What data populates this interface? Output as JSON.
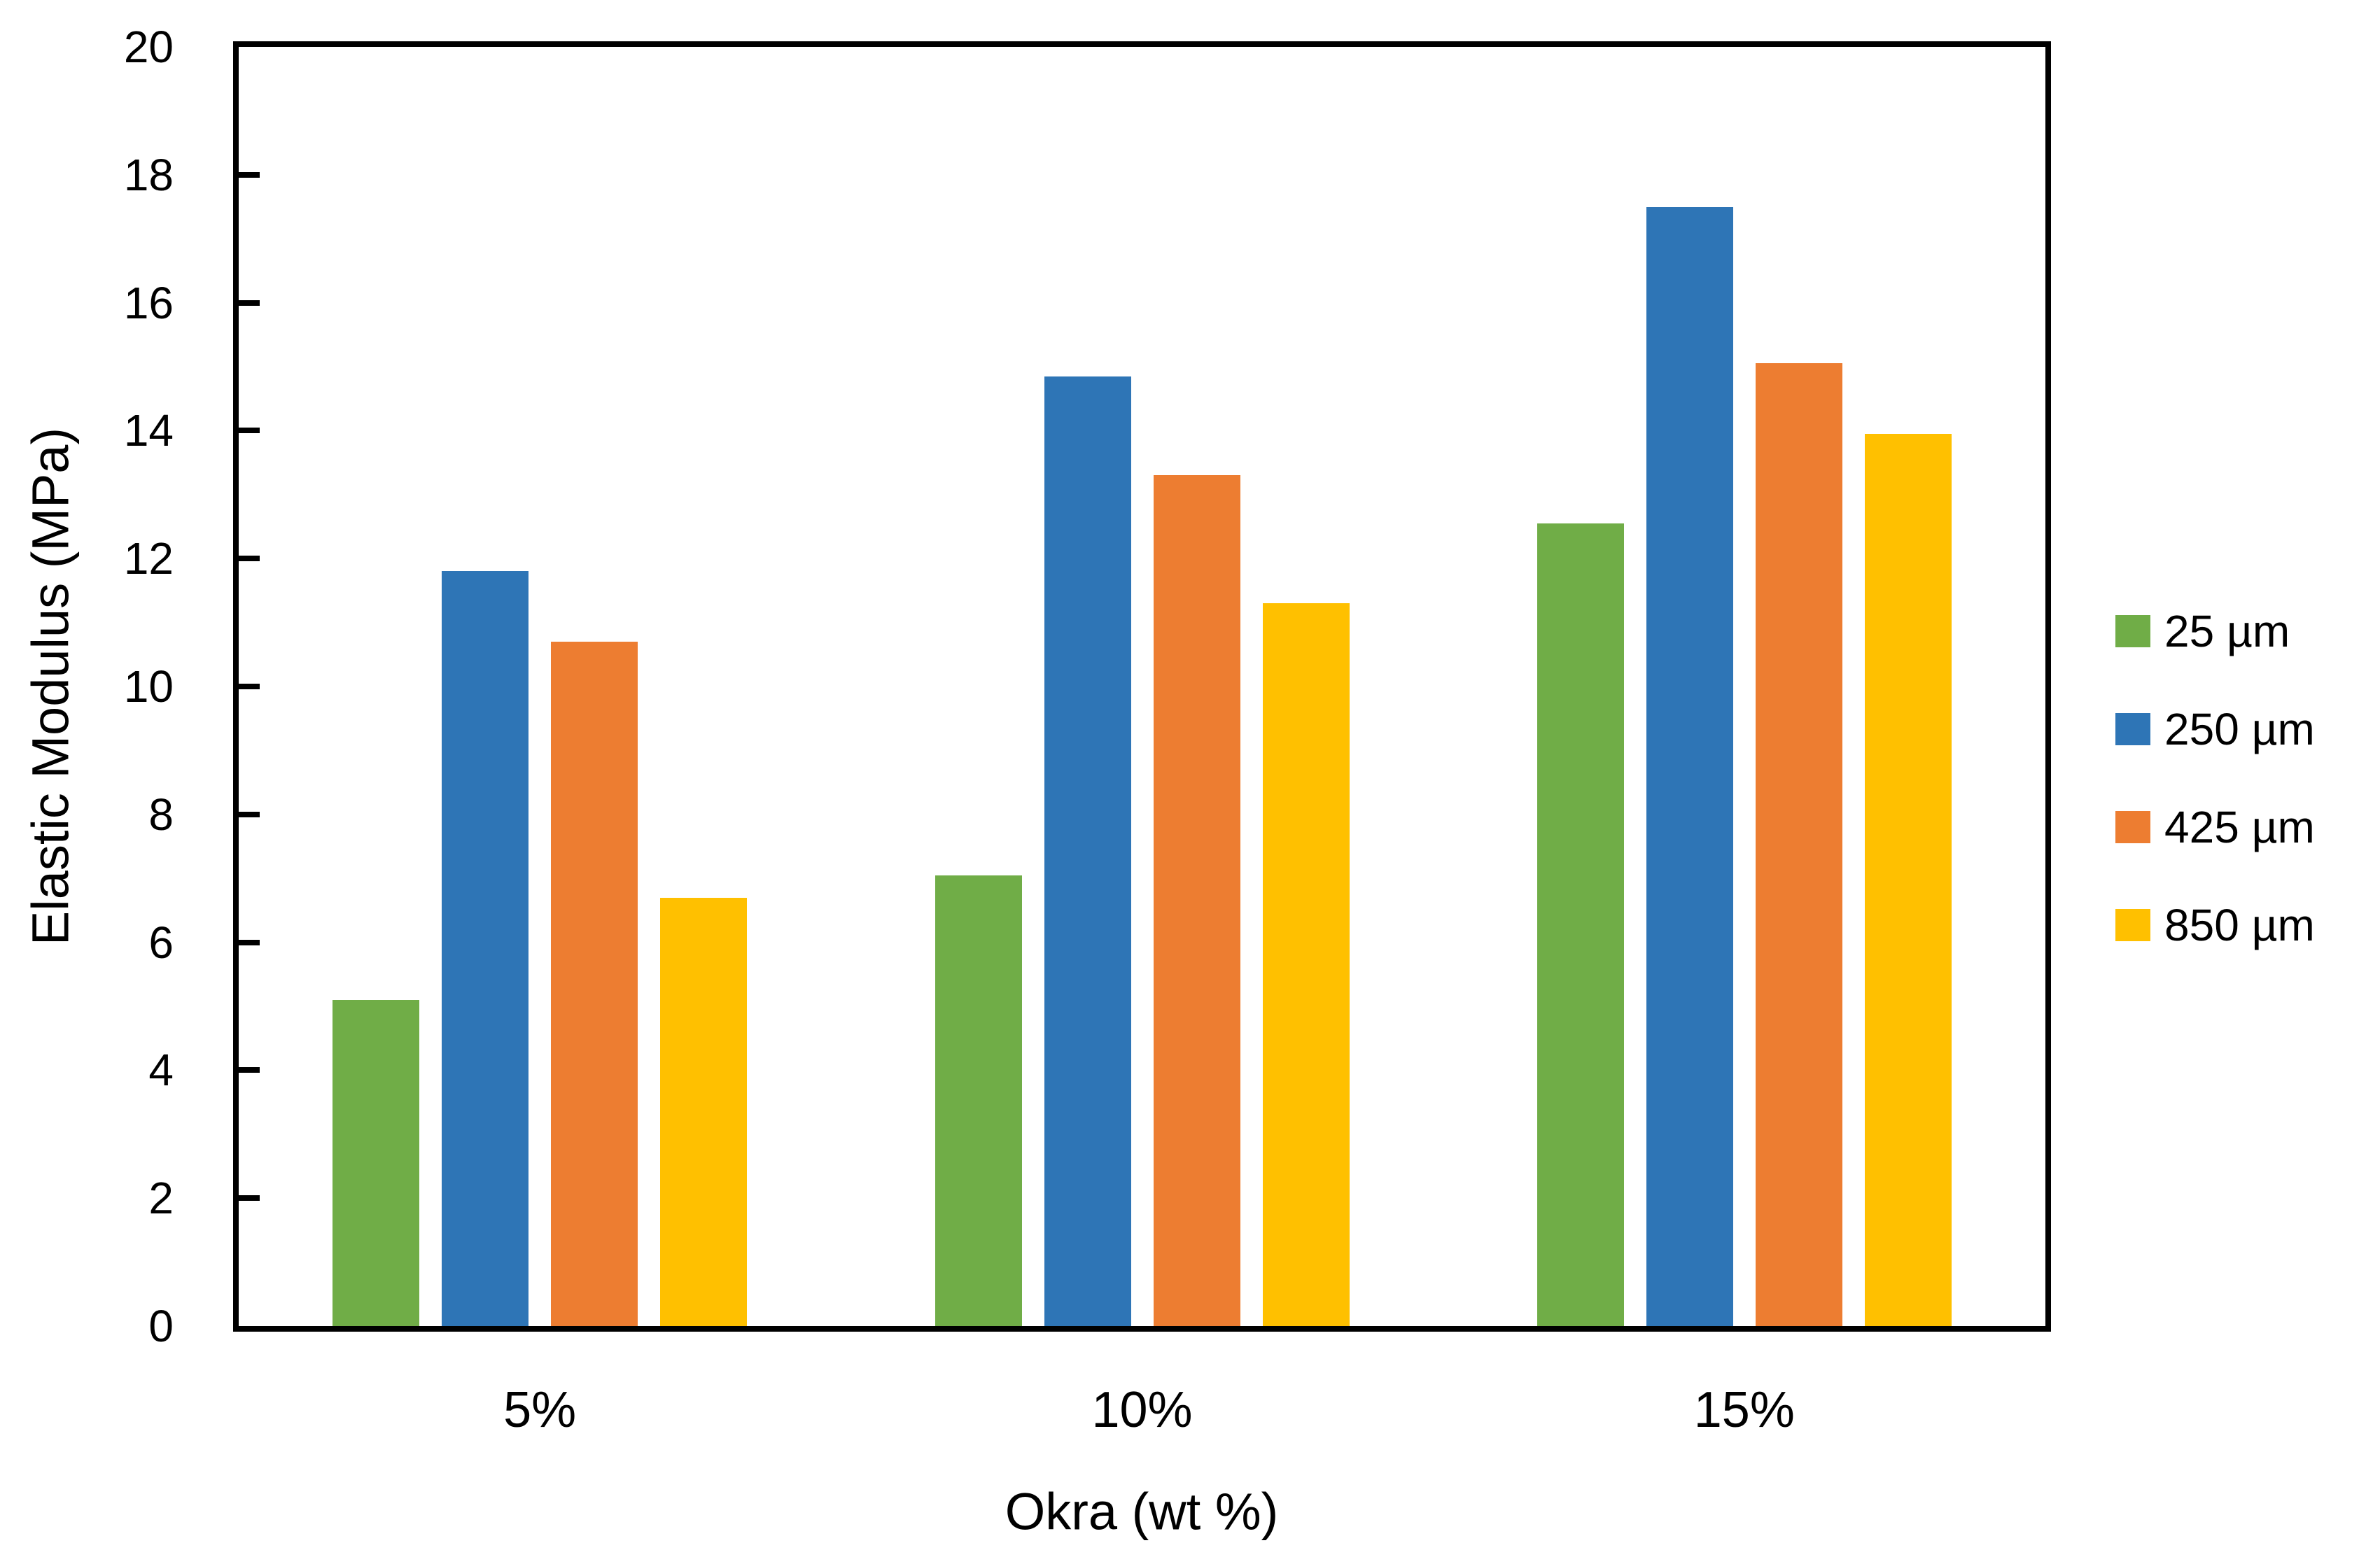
{
  "chart_data": {
    "type": "bar",
    "title": "",
    "xlabel": "Okra (wt %)",
    "ylabel": "Elastic Modulus (MPa)",
    "categories": [
      "5%",
      "10%",
      "15%"
    ],
    "series": [
      {
        "name": "25 µm",
        "color": "#70AD47",
        "values": [
          5.1,
          7.05,
          12.55
        ]
      },
      {
        "name": "250 µm",
        "color": "#2E75B6",
        "values": [
          11.8,
          14.85,
          17.5
        ]
      },
      {
        "name": "425 µm",
        "color": "#ED7D31",
        "values": [
          10.7,
          13.3,
          15.05
        ]
      },
      {
        "name": "850 µm",
        "color": "#FFC000",
        "values": [
          6.7,
          11.3,
          13.95
        ]
      }
    ],
    "ylim": [
      0,
      20
    ],
    "yticks": [
      0,
      2,
      4,
      6,
      8,
      10,
      12,
      14,
      16,
      18,
      20
    ],
    "legend_position": "right",
    "grid": false,
    "frame_color": "#000000"
  }
}
